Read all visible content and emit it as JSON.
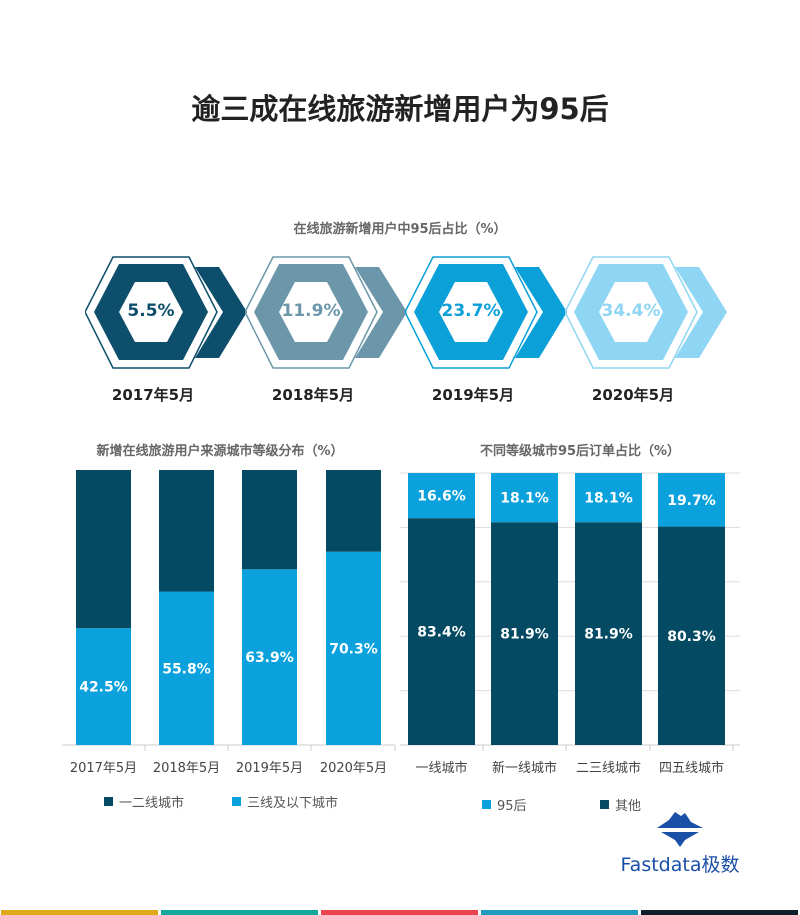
{
  "title": "逾三成在线旅游新增用户为95后",
  "hex_section": {
    "subtitle": "在线旅游新增用户中95后占比（%）",
    "items": [
      {
        "label": "2017年5月",
        "value": "5.5%",
        "color": "#0d4e6c"
      },
      {
        "label": "2018年5月",
        "value": "11.9%",
        "color": "#6c97aa"
      },
      {
        "label": "2019年5月",
        "value": "23.7%",
        "color": "#0ba0d8"
      },
      {
        "label": "2020年5月",
        "value": "34.4%",
        "color": "#8fd6f4"
      }
    ]
  },
  "chart_data": [
    {
      "type": "bar",
      "stacked": true,
      "title": "新增在线旅游用户来源城市等级分布（%）",
      "categories": [
        "2017年5月",
        "2018年5月",
        "2019年5月",
        "2020年5月"
      ],
      "series": [
        {
          "name": "三线及以下城市",
          "values": [
            42.5,
            55.8,
            63.9,
            70.3
          ],
          "color": "#0aa1dc",
          "labels": [
            "42.5%",
            "55.8%",
            "63.9%",
            "70.3%"
          ]
        },
        {
          "name": "一二线城市",
          "values": [
            57.5,
            44.2,
            36.1,
            29.7
          ],
          "color": "#034a62"
        }
      ],
      "ylim": [
        0,
        100
      ],
      "grid": false,
      "legend": "bottom",
      "legend_order": [
        "一二线城市",
        "三线及以下城市"
      ]
    },
    {
      "type": "bar",
      "stacked": true,
      "title": "不同等级城市95后订单占比（%）",
      "categories": [
        "一线城市",
        "新一线城市",
        "二三线城市",
        "四五线城市"
      ],
      "series": [
        {
          "name": "其他",
          "values": [
            83.4,
            81.9,
            81.9,
            80.3
          ],
          "color": "#034a62",
          "labels": [
            "83.4%",
            "81.9%",
            "81.9%",
            "80.3%"
          ]
        },
        {
          "name": "95后",
          "values": [
            16.6,
            18.1,
            18.1,
            19.7
          ],
          "color": "#0aa1dc",
          "labels": [
            "16.6%",
            "18.1%",
            "18.1%",
            "19.7%"
          ]
        }
      ],
      "ylim": [
        0,
        100
      ],
      "grid": true,
      "legend": "bottom",
      "legend_order": [
        "95后",
        "其他"
      ]
    }
  ],
  "logo": {
    "text": "Fastdata极数"
  },
  "strip_colors": [
    "#e0a91c",
    "#14a89c",
    "#e8434e",
    "#1e9bbf",
    "#0e1e2a"
  ]
}
